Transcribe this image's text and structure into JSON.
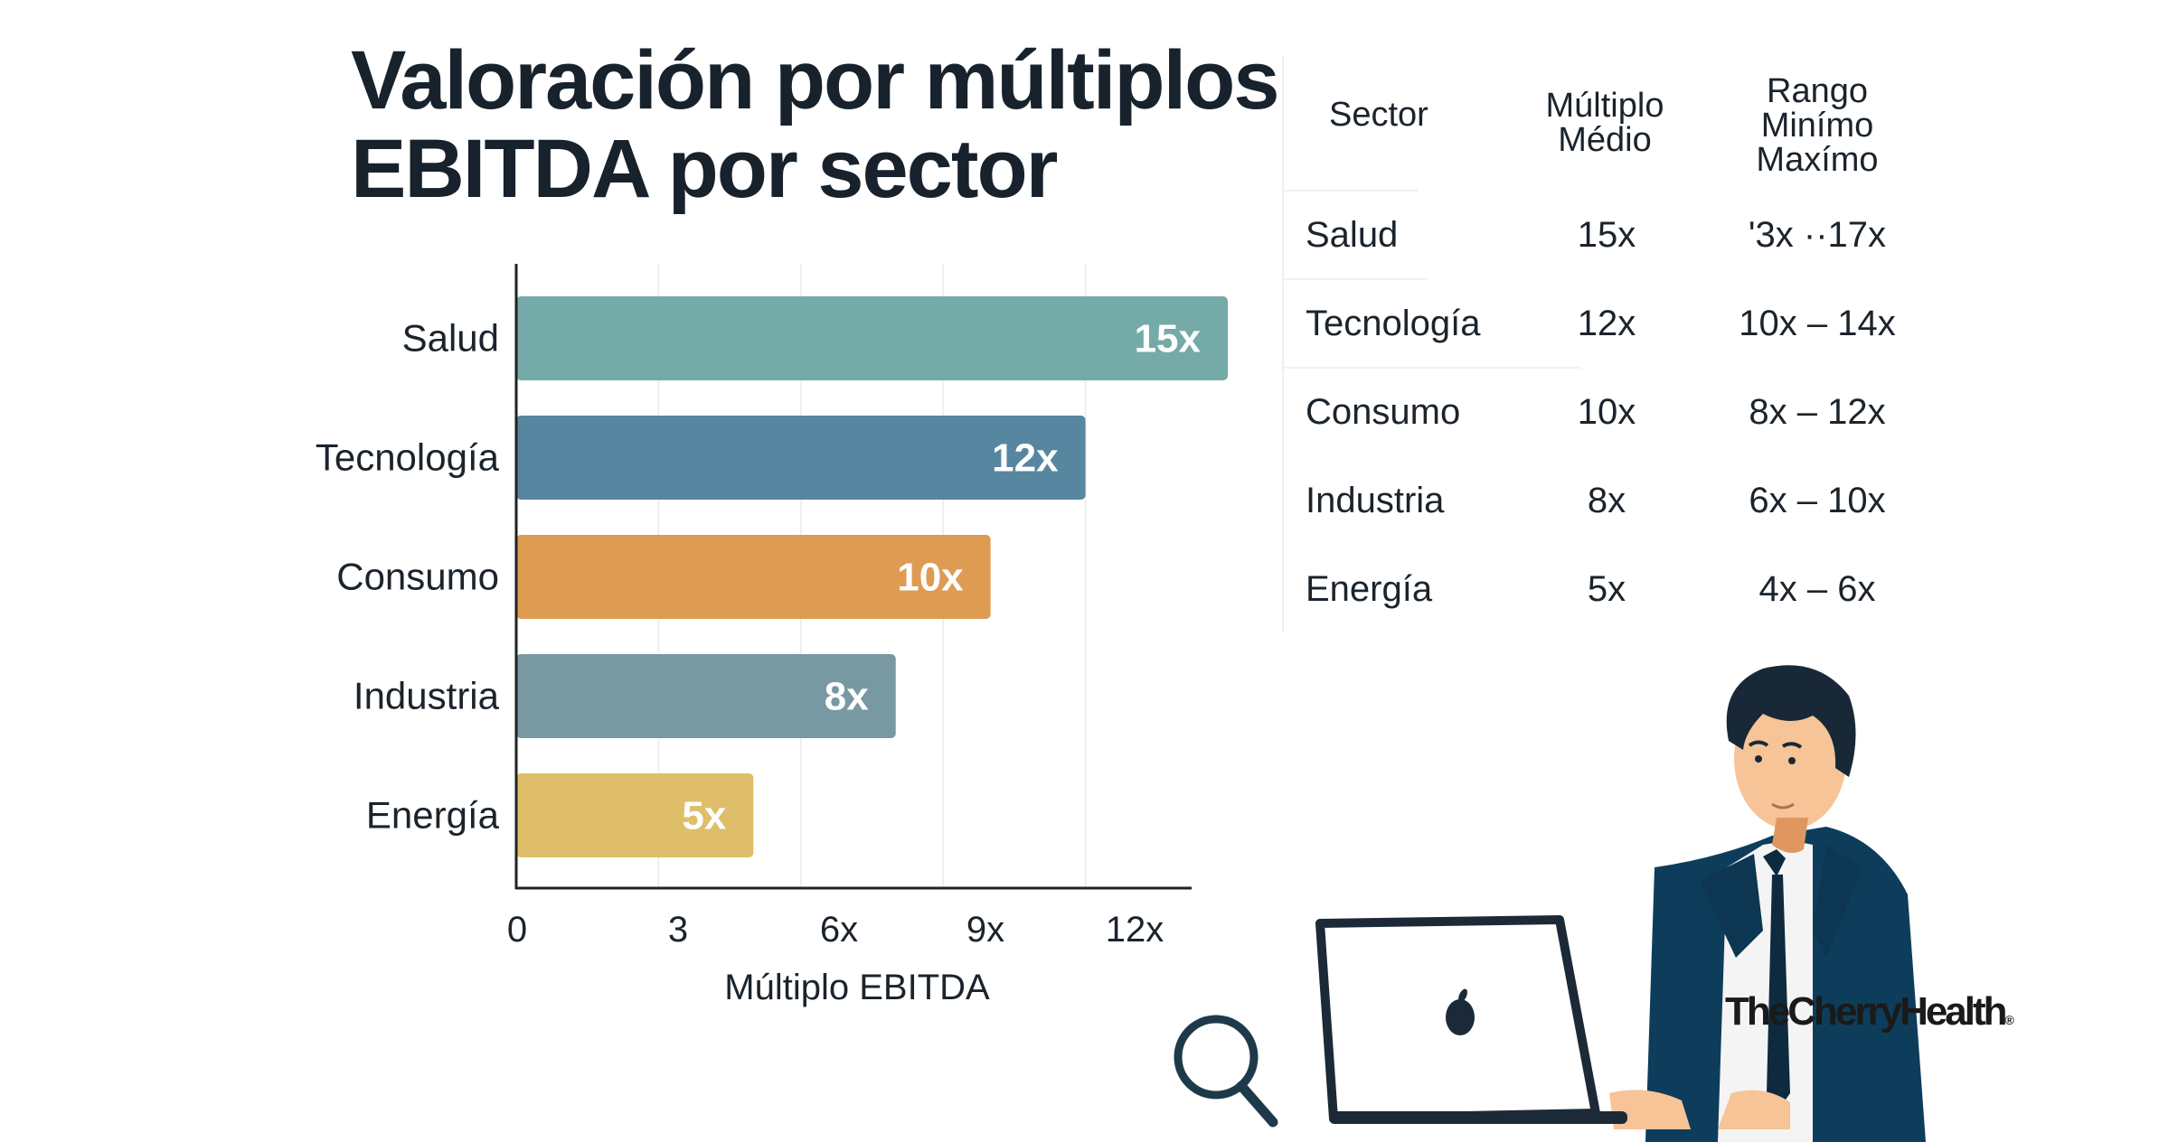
{
  "title": {
    "line1": "Valoración por múltiplos",
    "line2": "EBITDA por sector"
  },
  "chart_data": {
    "type": "bar",
    "orientation": "horizontal",
    "title": "Valoración por múltiplos EBITDA por sector",
    "xlabel": "Múltiplo EBITDA",
    "ylabel": "",
    "categories": [
      "Salud",
      "Tecnología",
      "Consumo",
      "Industria",
      "Energía"
    ],
    "values": [
      15,
      12,
      10,
      8,
      5
    ],
    "data_labels": [
      "15x",
      "12x",
      "10x",
      "8x",
      "5x"
    ],
    "colors": [
      "#74aaa8",
      "#5786a0",
      "#de9b52",
      "#7898a2",
      "#dfbe6a"
    ],
    "xticks": [
      0,
      3,
      6,
      9,
      12
    ],
    "xtick_labels": [
      "0",
      "3",
      "6x",
      "9x",
      "12x"
    ],
    "xlim": [
      0,
      15.5
    ],
    "grid": "vertical",
    "legend": "none"
  },
  "table": {
    "headers": {
      "sector": "Sector",
      "medio_line1": "Múltiplo",
      "medio_line2": "Médio",
      "rango_line1": "Rango",
      "rango_line2": "Minímo",
      "rango_line3": "Maxímo"
    },
    "rows": [
      {
        "sector": "Salud",
        "medio": "15x",
        "rango": "'3x ··17x"
      },
      {
        "sector": "Tecnología",
        "medio": "12x",
        "rango": "10x – 14x"
      },
      {
        "sector": "Consumo",
        "medio": "10x",
        "rango": "8x – 12x"
      },
      {
        "sector": "Industria",
        "medio": "8x",
        "rango": "6x – 10x"
      },
      {
        "sector": "Energía",
        "medio": "5x",
        "rango": "4x – 6x"
      }
    ]
  },
  "illustration": {
    "brand_text": "TheCherryHealth",
    "brand_mark": "®"
  }
}
